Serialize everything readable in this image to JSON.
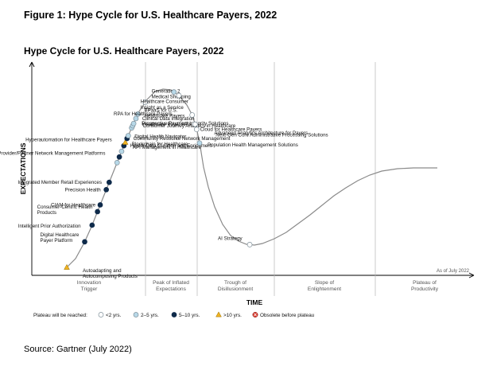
{
  "figure_title": "Figure 1: Hype Cycle for U.S. Healthcare Payers, 2022",
  "source": "Source: Gartner (July 2022)",
  "colors": {
    "lt2": "#ffffff",
    "y2to5": "#b7d8e8",
    "y5to10": "#0e2a4a",
    "gt10": "#f0b323",
    "obsolete": "#d9372b",
    "curve": "#8a8a8a"
  },
  "chart_data": {
    "type": "scatter",
    "title": "Hype Cycle for U.S. Healthcare Payers, 2022",
    "xlabel": "TIME",
    "ylabel": "EXPECTATIONS",
    "as_of": "As of July 2022",
    "phases": [
      {
        "line1": "Innovation",
        "line2": "Trigger"
      },
      {
        "line1": "Peak of Inflated",
        "line2": "Expectations"
      },
      {
        "line1": "Trough of",
        "line2": "Disillusionment"
      },
      {
        "line1": "Slope of",
        "line2": "Enlightenment"
      },
      {
        "line1": "Plateau of",
        "line2": "Productivity"
      }
    ],
    "legend": {
      "title": "Plateau will be reached:",
      "items": [
        {
          "key": "lt2",
          "label": "<2 yrs."
        },
        {
          "key": "y2to5",
          "label": "2–5 yrs."
        },
        {
          "key": "y5to10",
          "label": "5–10 yrs."
        },
        {
          "key": "gt10",
          "label": ">10 yrs."
        },
        {
          "key": "obsolete",
          "label": "Obsolete before plateau"
        }
      ]
    },
    "technologies": [
      {
        "name": "Autoadapting and Autocomposing Products",
        "lines": [
          "Autoadapting and",
          "Autocomposing Products"
        ],
        "t": 0.0,
        "cat": "gt10",
        "ldx": 20,
        "ldy": 6
      },
      {
        "name": "Digital Healthcare Payer Platform",
        "lines": [
          "Digital Healthcare",
          "Payer Platform"
        ],
        "t": 0.052,
        "cat": "y5to10",
        "ldx": -56,
        "ldy": -7
      },
      {
        "name": "Intelligent Prior Authorization",
        "lines": [
          "Intelligent Prior Authorization"
        ],
        "t": 0.082,
        "cat": "y5to10",
        "ldx": -93,
        "ldy": 3
      },
      {
        "name": "Consumer-Centric Health Products",
        "lines": [
          "Consumer-Centric Health",
          "Products"
        ],
        "t": 0.106,
        "cat": "y5to10",
        "ldx": -76,
        "ldy": -4
      },
      {
        "name": "CIAM for Healthcare",
        "lines": [
          "CIAM for Healthcare"
        ],
        "t": 0.118,
        "cat": "y5to10",
        "ldx": -62,
        "ldy": 2
      },
      {
        "name": "Precision Health",
        "lines": [
          "Precision Health"
        ],
        "t": 0.145,
        "cat": "y5to10",
        "ldx": -52,
        "ldy": 2
      },
      {
        "name": "Integrated Member Retail Experiences",
        "lines": [
          "Integrated Member Retail Experiences"
        ],
        "t": 0.158,
        "cat": "y5to10",
        "ldx": -115,
        "ldy": 2
      },
      {
        "name": "Provider/Partner Network Management Platforms",
        "lines": [
          "Provider/Partner Network Management Platforms"
        ],
        "t": 0.193,
        "cat": "y2to5",
        "ldx": -150,
        "ldy": -10
      },
      {
        "name": "Hyperautomation for Healthcare Payers",
        "lines": [
          "Hyperautomation for Healthcare Payers"
        ],
        "t": 0.203,
        "cat": "y5to10",
        "ldx": -118,
        "ldy": -20
      },
      {
        "name": "API Management in Healthcare",
        "lines": [
          "API Management in Healthcare"
        ],
        "t": 0.213,
        "cat": "y2to5",
        "ldx": 14,
        "ldy": -3
      },
      {
        "name": "Blockchain for Healthcare",
        "lines": [
          "Blockchain for Healthcare"
        ],
        "t": 0.223,
        "cat": "y5to10",
        "ldx": 10,
        "ldy": 0
      },
      {
        "name": "Health Data Curation and Enrichment",
        "lines": [
          "Health Data Curation and Enrichment"
        ],
        "t": 0.229,
        "cat": "gt10",
        "ldx": 6,
        "ldy": 6
      },
      {
        "name": "Community Resource Network Management",
        "lines": [
          "Community Resource Network Management"
        ],
        "t": 0.236,
        "cat": "y5to10",
        "ldx": 8,
        "ldy": 2
      },
      {
        "name": "Digital Health Navigator",
        "lines": [
          "Digital Health Navigator"
        ],
        "t": 0.241,
        "cat": "y2to5",
        "ldx": 8,
        "ldy": 3
      },
      {
        "name": "Consumer Journey Analytics in Healthcare",
        "lines": [
          "Consumer Journey Analytics in Healthcare"
        ],
        "t": 0.255,
        "cat": "y2to5",
        "ldx": 14,
        "ldy": -1
      },
      {
        "name": "Healthcare Payer APIs",
        "lines": [
          "Healthcare Payer APIs"
        ],
        "t": 0.259,
        "cat": "y2to5",
        "ldx": 12,
        "ldy": 0
      },
      {
        "name": "Prospective Payment Integrity Solutions",
        "lines": [
          "Prospective Payment Integrity Solutions"
        ],
        "t": 0.263,
        "cat": "y2to5",
        "ldx": 10,
        "ldy": 2
      },
      {
        "name": "Clinical Data Integration",
        "lines": [
          "Clinical Data Integration"
        ],
        "t": 0.272,
        "cat": "y2to5",
        "ldx": 8,
        "ldy": 2
      },
      {
        "name": "BPaaS for U.S. Healthcare Payers",
        "lines": [
          "BPaaS for U.S.",
          "Healthcare Payers"
        ],
        "t": 0.28,
        "cat": "y2to5",
        "ldx": 8,
        "ldy": -3
      },
      {
        "name": "Generation 2 Medical Shopping",
        "lines": [
          "Generation 2",
          "Medical Shopping"
        ],
        "t": 0.303,
        "cat": "lt2",
        "ldx": 8,
        "ldy": -12
      },
      {
        "name": "Healthcare Consumer Insight as a Service",
        "lines": [
          "Healthcare Consumer",
          "Insight as a Service"
        ],
        "t": 0.36,
        "cat": "y2to5",
        "ldx": -42,
        "ldy": 14
      },
      {
        "name": "RPA for Healthcare Payers",
        "lines": [
          "RPA for Healthcare Payers"
        ],
        "t": 0.37,
        "cat": "lt2",
        "ldx": -82,
        "ldy": 25
      },
      {
        "name": "Cloud for Healthcare Payers",
        "lines": [
          "Cloud for Healthcare Payers"
        ],
        "t": 0.409,
        "cat": "lt2",
        "ldx": 10,
        "ldy": 20
      },
      {
        "name": "Advanced Analytics Architecture for Payers",
        "lines": [
          "Advanced Analytics Architecture for Payers"
        ],
        "t": 0.425,
        "cat": "lt2",
        "ldx": 24,
        "ldy": 13
      },
      {
        "name": "Next-Gen Core Administrative Processing Solutions",
        "lines": [
          "Next-Gen Core Administrative Processing Solutions"
        ],
        "t": 0.434,
        "cat": "lt2",
        "ldx": 24,
        "ldy": 9
      },
      {
        "name": "Population Health Management Solutions",
        "lines": [
          "Population Health Management Solutions"
        ],
        "t": 0.457,
        "cat": "y2to5",
        "ldx": 10,
        "ldy": 4
      },
      {
        "name": "AI Strategy",
        "lines": [
          "AI Strategy"
        ],
        "t": 0.655,
        "cat": "lt2",
        "ldx": -40,
        "ldy": -6
      }
    ]
  }
}
